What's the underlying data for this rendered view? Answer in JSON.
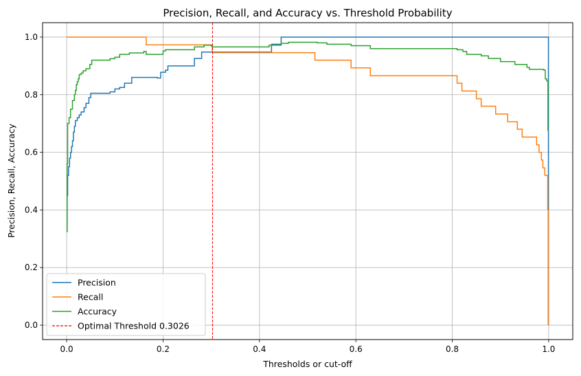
{
  "chart_data": {
    "type": "line",
    "title": "Precision, Recall, and Accuracy vs. Threshold Probability",
    "xlabel": "Thresholds or cut-off",
    "ylabel": "Precision, Recall, Accuracy",
    "xlim": [
      -0.05,
      1.05
    ],
    "ylim": [
      -0.05,
      1.05
    ],
    "xticks": [
      0.0,
      0.2,
      0.4,
      0.6,
      0.8,
      1.0
    ],
    "yticks": [
      0.0,
      0.2,
      0.4,
      0.6,
      0.8,
      1.0
    ],
    "xtick_labels": [
      "0.0",
      "0.2",
      "0.4",
      "0.6",
      "0.8",
      "1.0"
    ],
    "ytick_labels": [
      "0.0",
      "0.2",
      "0.4",
      "0.6",
      "0.8",
      "1.0"
    ],
    "grid": true,
    "legend_position": "lower-left",
    "series": [
      {
        "name": "Precision",
        "color": "#1f77b4",
        "step": true,
        "points": [
          [
            0.0,
            0.325
          ],
          [
            0.001,
            0.45
          ],
          [
            0.002,
            0.52
          ],
          [
            0.004,
            0.55
          ],
          [
            0.006,
            0.58
          ],
          [
            0.008,
            0.6
          ],
          [
            0.01,
            0.62
          ],
          [
            0.012,
            0.64
          ],
          [
            0.014,
            0.67
          ],
          [
            0.016,
            0.69
          ],
          [
            0.018,
            0.71
          ],
          [
            0.022,
            0.72
          ],
          [
            0.026,
            0.73
          ],
          [
            0.03,
            0.74
          ],
          [
            0.036,
            0.755
          ],
          [
            0.04,
            0.77
          ],
          [
            0.046,
            0.79
          ],
          [
            0.05,
            0.805
          ],
          [
            0.09,
            0.81
          ],
          [
            0.1,
            0.82
          ],
          [
            0.11,
            0.825
          ],
          [
            0.12,
            0.84
          ],
          [
            0.135,
            0.86
          ],
          [
            0.17,
            0.86
          ],
          [
            0.188,
            0.858
          ],
          [
            0.195,
            0.878
          ],
          [
            0.205,
            0.885
          ],
          [
            0.21,
            0.9
          ],
          [
            0.235,
            0.9
          ],
          [
            0.265,
            0.926
          ],
          [
            0.28,
            0.948
          ],
          [
            0.3,
            0.948
          ],
          [
            0.425,
            0.975
          ],
          [
            0.445,
            1.0
          ],
          [
            0.995,
            1.0
          ],
          [
            0.9995,
            0.0
          ]
        ]
      },
      {
        "name": "Recall",
        "color": "#ff7f0e",
        "step": true,
        "points": [
          [
            0.0,
            1.0
          ],
          [
            0.165,
            0.973
          ],
          [
            0.302,
            0.946
          ],
          [
            0.515,
            0.92
          ],
          [
            0.59,
            0.893
          ],
          [
            0.63,
            0.866
          ],
          [
            0.81,
            0.84
          ],
          [
            0.82,
            0.813
          ],
          [
            0.85,
            0.786
          ],
          [
            0.86,
            0.76
          ],
          [
            0.89,
            0.733
          ],
          [
            0.915,
            0.706
          ],
          [
            0.935,
            0.68
          ],
          [
            0.945,
            0.653
          ],
          [
            0.975,
            0.626
          ],
          [
            0.98,
            0.6
          ],
          [
            0.985,
            0.573
          ],
          [
            0.988,
            0.546
          ],
          [
            0.992,
            0.52
          ],
          [
            0.996,
            0.52
          ],
          [
            0.998,
            0.4
          ],
          [
            0.999,
            0.0
          ]
        ]
      },
      {
        "name": "Accuracy",
        "color": "#2ca02c",
        "step": true,
        "points": [
          [
            0.0,
            0.325
          ],
          [
            0.001,
            0.56
          ],
          [
            0.002,
            0.7
          ],
          [
            0.005,
            0.72
          ],
          [
            0.008,
            0.75
          ],
          [
            0.012,
            0.78
          ],
          [
            0.016,
            0.8
          ],
          [
            0.018,
            0.815
          ],
          [
            0.02,
            0.835
          ],
          [
            0.022,
            0.845
          ],
          [
            0.024,
            0.855
          ],
          [
            0.026,
            0.87
          ],
          [
            0.03,
            0.875
          ],
          [
            0.034,
            0.883
          ],
          [
            0.04,
            0.89
          ],
          [
            0.048,
            0.905
          ],
          [
            0.052,
            0.92
          ],
          [
            0.09,
            0.925
          ],
          [
            0.1,
            0.93
          ],
          [
            0.11,
            0.94
          ],
          [
            0.13,
            0.945
          ],
          [
            0.16,
            0.95
          ],
          [
            0.165,
            0.94
          ],
          [
            0.2,
            0.952
          ],
          [
            0.205,
            0.956
          ],
          [
            0.265,
            0.966
          ],
          [
            0.285,
            0.972
          ],
          [
            0.3,
            0.97
          ],
          [
            0.302,
            0.966
          ],
          [
            0.42,
            0.972
          ],
          [
            0.445,
            0.978
          ],
          [
            0.46,
            0.982
          ],
          [
            0.52,
            0.98
          ],
          [
            0.54,
            0.975
          ],
          [
            0.59,
            0.97
          ],
          [
            0.63,
            0.96
          ],
          [
            0.81,
            0.956
          ],
          [
            0.822,
            0.95
          ],
          [
            0.83,
            0.94
          ],
          [
            0.86,
            0.935
          ],
          [
            0.875,
            0.926
          ],
          [
            0.9,
            0.915
          ],
          [
            0.93,
            0.905
          ],
          [
            0.955,
            0.895
          ],
          [
            0.96,
            0.888
          ],
          [
            0.99,
            0.885
          ],
          [
            0.993,
            0.855
          ],
          [
            0.996,
            0.848
          ],
          [
            0.9985,
            0.675
          ]
        ]
      }
    ],
    "vline": {
      "label": "Optimal Threshold 0.3026",
      "x": 0.3026,
      "color": "#ff0000"
    }
  }
}
